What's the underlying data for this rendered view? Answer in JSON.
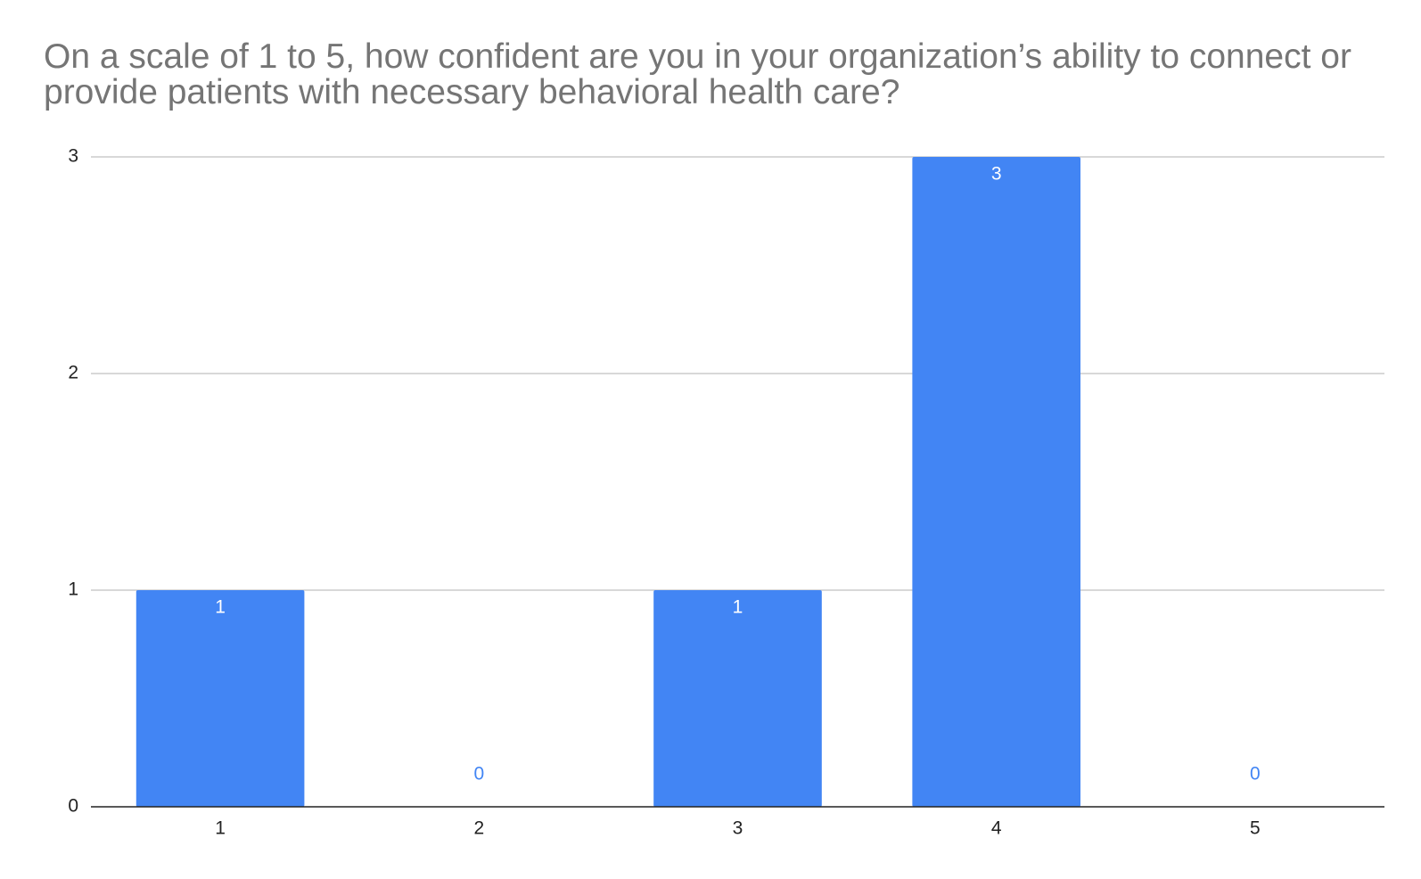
{
  "chart_data": {
    "type": "bar",
    "title": "On a scale of 1 to 5, how confident are you in your organization’s ability to connect or provide patients with necessary behavioral health care?",
    "categories": [
      "1",
      "2",
      "3",
      "4",
      "5"
    ],
    "values": [
      1,
      0,
      1,
      3,
      0
    ],
    "color": "#4285f4",
    "ylim": [
      0,
      3
    ],
    "yticks": [
      0,
      1,
      2,
      3
    ],
    "grid": true
  }
}
